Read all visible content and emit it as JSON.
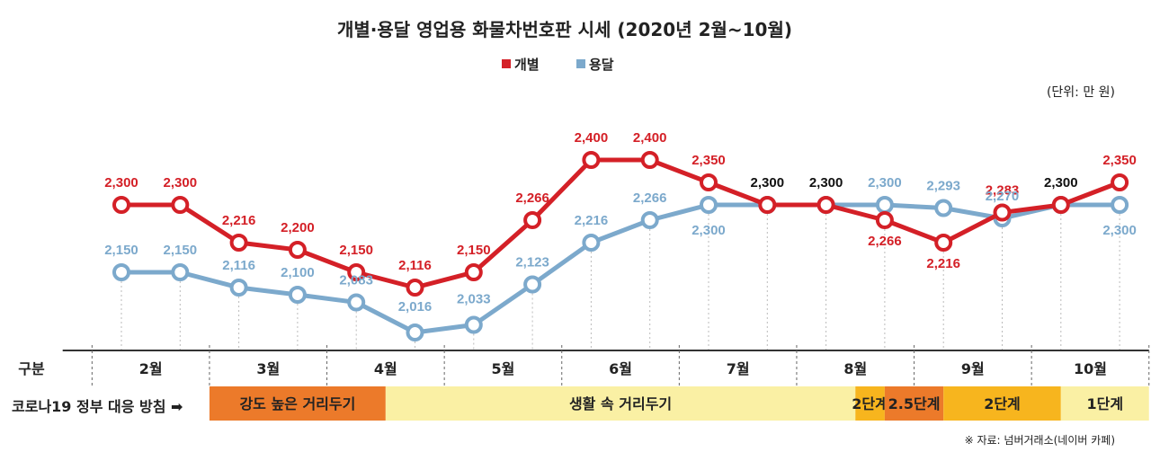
{
  "chart_data": {
    "type": "line",
    "title": "개별·용달 영업용 화물차번호판 시세 (2020년 2월~10월)",
    "unit": "(단위: 만 원)",
    "legend_placement": "top-center",
    "ylim": [
      1990,
      2420
    ],
    "x_count": 18,
    "series": [
      {
        "name": "개별",
        "color": "#d42027",
        "values": [
          2300,
          2300,
          2216,
          2200,
          2150,
          2116,
          2150,
          2266,
          2400,
          2400,
          2350,
          2300,
          2300,
          2266,
          2216,
          2283,
          2300,
          2350
        ],
        "labels": [
          "2,300",
          "2,300",
          "2,216",
          "2,200",
          "2,150",
          "2,116",
          "2,150",
          "2,266",
          "2,400",
          "2,400",
          "2,350",
          "2,300",
          "2,300",
          "2,266",
          "2,216",
          "2,283",
          "2,300",
          "2,350"
        ]
      },
      {
        "name": "용달",
        "color": "#7ca9cc",
        "values": [
          2150,
          2150,
          2116,
          2100,
          2083,
          2016,
          2033,
          2123,
          2216,
          2266,
          2300,
          2300,
          2300,
          2300,
          2293,
          2270,
          2300,
          2300
        ],
        "labels": [
          "2,150",
          "2,150",
          "2,116",
          "2,100",
          "2,083",
          "2,016",
          "2,033",
          "2,123",
          "2,216",
          "2,266",
          "2,300",
          "",
          "",
          "2,300",
          "2,293",
          "2,270",
          "",
          "2,300"
        ]
      }
    ],
    "months": [
      "2월",
      "3월",
      "4월",
      "5월",
      "6월",
      "7월",
      "8월",
      "9월",
      "10월"
    ],
    "row_labels": {
      "period": "구분",
      "policy": "코로나19 정부 대응 방침 ➡"
    },
    "policy_bands": [
      {
        "label": "강도 높은 거리두기",
        "start": 2,
        "end": 5,
        "color": "#ec7a2a"
      },
      {
        "label": "생활 속 거리두기",
        "start": 5,
        "end": 13,
        "color": "#faf0a4"
      },
      {
        "label": "2단계",
        "start": 13,
        "end": 13.5,
        "color": "#f7b51e"
      },
      {
        "label": "2.5단계",
        "start": 13.5,
        "end": 14.5,
        "color": "#ec7a2a"
      },
      {
        "label": "2단계",
        "start": 14.5,
        "end": 16.5,
        "color": "#f7b51e"
      },
      {
        "label": "1단계",
        "start": 16.5,
        "end": 18,
        "color": "#faf0a4"
      }
    ],
    "source": "※ 자료: 넘버거래소(네이버 카페)"
  }
}
